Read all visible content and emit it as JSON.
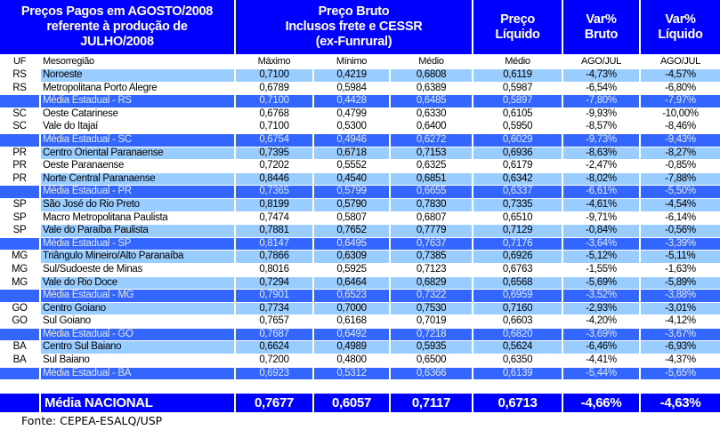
{
  "header": {
    "title_lines": [
      "Preços Pagos em AGOSTO/2008",
      "referente à produção de",
      "JULHO/2008"
    ],
    "preco_bruto_lines": [
      "Preço Bruto",
      "Inclusos frete e CESSR",
      "(ex-Funrural)"
    ],
    "preco_liquido_lines": [
      "Preço",
      "Líquido"
    ],
    "var_bruto_lines": [
      "Var%",
      "Bruto"
    ],
    "var_liquido_lines": [
      "Var%",
      "Líquido"
    ]
  },
  "columns": [
    "UF",
    "Mesorregião",
    "Máximo",
    "Mínimo",
    "Médio",
    "Médio",
    "AGO/JUL",
    "AGO/JUL"
  ],
  "rows": [
    {
      "style": "light",
      "uf": "RS",
      "region": "Noroeste",
      "max": "0,7100",
      "min": "0,4219",
      "med": "0,6808",
      "liq": "0,6119",
      "vb": "-4,73%",
      "vl": "-4,57%"
    },
    {
      "style": "white",
      "uf": "RS",
      "region": "Metropolitana Porto Alegre",
      "max": "0,6789",
      "min": "0,5984",
      "med": "0,6389",
      "liq": "0,5987",
      "vb": "-6,54%",
      "vl": "-6,80%"
    },
    {
      "style": "avg",
      "uf": "",
      "region": "Média Estadual - RS",
      "max": "0,7100",
      "min": "0,4428",
      "med": "0,6485",
      "liq": "0,5897",
      "vb": "-7,80%",
      "vl": "-7,97%"
    },
    {
      "style": "white",
      "uf": "SC",
      "region": "Oeste Catarinese",
      "max": "0,6768",
      "min": "0,4799",
      "med": "0,6330",
      "liq": "0,6105",
      "vb": "-9,93%",
      "vl": "-10,00%"
    },
    {
      "style": "white",
      "uf": "SC",
      "region": "Vale do Itajaí",
      "max": "0,7100",
      "min": "0,5300",
      "med": "0,6400",
      "liq": "0,5950",
      "vb": "-8,57%",
      "vl": "-8,46%"
    },
    {
      "style": "avg",
      "uf": "",
      "region": "Média Estadual - SC",
      "max": "0,6754",
      "min": "0,4946",
      "med": "0,6272",
      "liq": "0,6029",
      "vb": "-9,73%",
      "vl": "-9,43%"
    },
    {
      "style": "light",
      "uf": "PR",
      "region": "Centro Oriental Paranaense",
      "max": "0,7395",
      "min": "0,6718",
      "med": "0,7153",
      "liq": "0,6936",
      "vb": "-8,63%",
      "vl": "-8,27%"
    },
    {
      "style": "white",
      "uf": "PR",
      "region": "Oeste Paranaense",
      "max": "0,7202",
      "min": "0,5552",
      "med": "0,6325",
      "liq": "0,6179",
      "vb": "-2,47%",
      "vl": "-0,85%"
    },
    {
      "style": "light",
      "uf": "PR",
      "region": "Norte Central Paranaense",
      "max": "0,8446",
      "min": "0,4540",
      "med": "0,6851",
      "liq": "0,6342",
      "vb": "-8,02%",
      "vl": "-7,88%"
    },
    {
      "style": "avg",
      "uf": "",
      "region": "Média Estadual - PR",
      "max": "0,7365",
      "min": "0,5799",
      "med": "0,6655",
      "liq": "0,6337",
      "vb": "-6,61%",
      "vl": "-5,50%"
    },
    {
      "style": "light",
      "uf": "SP",
      "region": "São José do Rio Preto",
      "max": "0,8199",
      "min": "0,5790",
      "med": "0,7830",
      "liq": "0,7335",
      "vb": "-4,61%",
      "vl": "-4,54%"
    },
    {
      "style": "white",
      "uf": "SP",
      "region": "Macro Metropolitana Paulista",
      "max": "0,7474",
      "min": "0,5807",
      "med": "0,6807",
      "liq": "0,6510",
      "vb": "-9,71%",
      "vl": "-6,14%"
    },
    {
      "style": "light",
      "uf": "SP",
      "region": "Vale do Paraíba Paulista",
      "max": "0,7881",
      "min": "0,7652",
      "med": "0,7779",
      "liq": "0,7129",
      "vb": "-0,84%",
      "vl": "-0,56%"
    },
    {
      "style": "avg",
      "uf": "",
      "region": "Média Estadual - SP",
      "max": "0,8147",
      "min": "0,6495",
      "med": "0,7637",
      "liq": "0,7176",
      "vb": "-3,64%",
      "vl": "-3,39%"
    },
    {
      "style": "light",
      "uf": "MG",
      "region": "Triângulo Mineiro/Alto Paranaíba",
      "max": "0,7866",
      "min": "0,6309",
      "med": "0,7385",
      "liq": "0,6926",
      "vb": "-5,12%",
      "vl": "-5,11%"
    },
    {
      "style": "white",
      "uf": "MG",
      "region": "Sul/Sudoeste de Minas",
      "max": "0,8016",
      "min": "0,5925",
      "med": "0,7123",
      "liq": "0,6763",
      "vb": "-1,55%",
      "vl": "-1,63%"
    },
    {
      "style": "light",
      "uf": "MG",
      "region": "Vale do Rio Doce",
      "max": "0,7294",
      "min": "0,6464",
      "med": "0,6829",
      "liq": "0,6568",
      "vb": "-5,69%",
      "vl": "-5,89%"
    },
    {
      "style": "avg",
      "uf": "",
      "region": "Média Estadual - MG",
      "max": "0,7901",
      "min": "0,6523",
      "med": "0,7322",
      "liq": "0,6959",
      "vb": "-3,52%",
      "vl": "-3,88%"
    },
    {
      "style": "light",
      "uf": "GO",
      "region": "Centro Goiano",
      "max": "0,7734",
      "min": "0,7000",
      "med": "0,7530",
      "liq": "0,7160",
      "vb": "-2,93%",
      "vl": "-3,01%"
    },
    {
      "style": "white",
      "uf": "GO",
      "region": "Sul Goiano",
      "max": "0,7657",
      "min": "0,6168",
      "med": "0,7019",
      "liq": "0,6603",
      "vb": "-4,20%",
      "vl": "-4,12%"
    },
    {
      "style": "avg",
      "uf": "",
      "region": "Média Estadual - GO",
      "max": "0,7687",
      "min": "0,6492",
      "med": "0,7218",
      "liq": "0,6820",
      "vb": "-3,69%",
      "vl": "-3,67%"
    },
    {
      "style": "light",
      "uf": "BA",
      "region": "Centro Sul Baiano",
      "max": "0,6624",
      "min": "0,4989",
      "med": "0,5935",
      "liq": "0,5624",
      "vb": "-6,46%",
      "vl": "-6,93%"
    },
    {
      "style": "white",
      "uf": "BA",
      "region": "Sul Baiano",
      "max": "0,7200",
      "min": "0,4800",
      "med": "0,6500",
      "liq": "0,6350",
      "vb": "-4,41%",
      "vl": "-4,37%"
    },
    {
      "style": "avg",
      "uf": "",
      "region": "Média Estadual - BA",
      "max": "0,6923",
      "min": "0,5312",
      "med": "0,6366",
      "liq": "0,6139",
      "vb": "-5,44%",
      "vl": "-5,65%"
    }
  ],
  "national": {
    "label": "Média NACIONAL",
    "max": "0,7677",
    "min": "0,6057",
    "med": "0,7117",
    "liq": "0,6713",
    "vb": "-4,66%",
    "vl": "-4,63%"
  },
  "source": "Fonte: CEPEA-ESALQ/USP"
}
